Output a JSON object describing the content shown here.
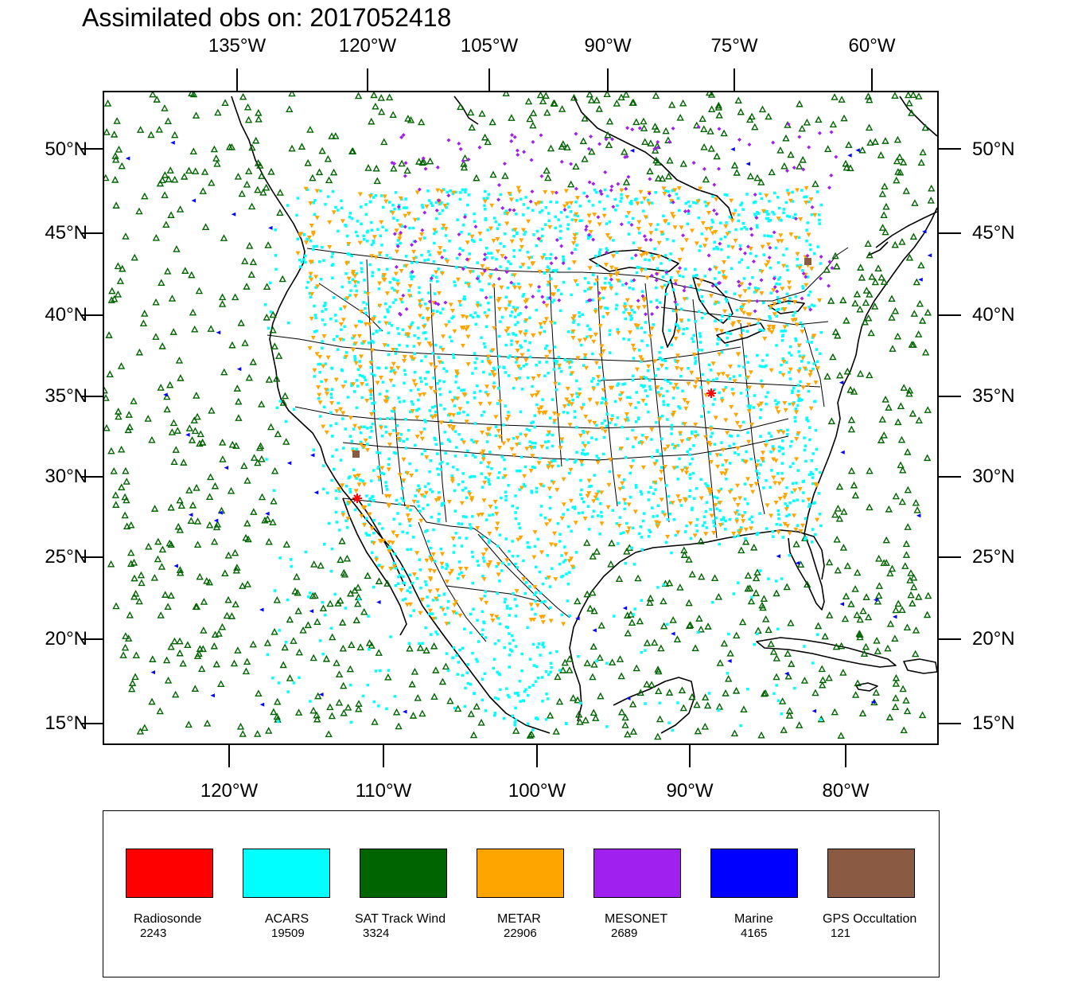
{
  "title": "Assimilated obs on: 2017052418",
  "map": {
    "projection": "lambert-conformal-like",
    "region": "North America / CONUS",
    "top_lon_labels": [
      "135°W",
      "120°W",
      "105°W",
      "90°W",
      "75°W",
      "60°W"
    ],
    "bottom_lon_labels": [
      "120°W",
      "110°W",
      "100°W",
      "90°W",
      "80°W"
    ],
    "lat_labels": [
      "50°N",
      "45°N",
      "40°N",
      "35°N",
      "30°N",
      "25°N",
      "20°N",
      "15°N"
    ],
    "background_color": "#ffffff",
    "coast_color": "#000000"
  },
  "legend": {
    "items": [
      {
        "name": "Radiosonde",
        "count": "2243",
        "color": "#ff0000",
        "marker": "asterisk"
      },
      {
        "name": "ACARS",
        "count": "19509",
        "color": "#00ffff",
        "marker": "square-dot"
      },
      {
        "name": "SAT Track Wind",
        "count": "3324",
        "color": "#006400",
        "marker": "triangle-up-outline"
      },
      {
        "name": "METAR",
        "count": "22906",
        "color": "#ffa500",
        "marker": "triangle-down"
      },
      {
        "name": "MESONET",
        "count": "2689",
        "color": "#a020f0",
        "marker": "diamond"
      },
      {
        "name": "Marine",
        "count": "4165",
        "color": "#0000ff",
        "marker": "triangle-left"
      },
      {
        "name": "GPS Occultation",
        "count": "121",
        "color": "#8b5a42",
        "marker": "square"
      }
    ]
  }
}
